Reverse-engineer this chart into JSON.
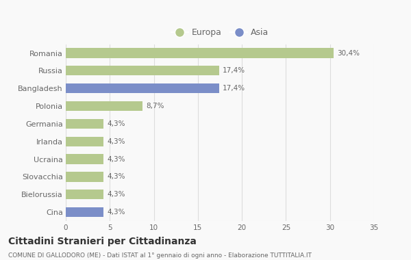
{
  "countries": [
    "Romania",
    "Russia",
    "Bangladesh",
    "Polonia",
    "Germania",
    "Irlanda",
    "Ucraina",
    "Slovacchia",
    "Bielorussia",
    "Cina"
  ],
  "values": [
    30.4,
    17.4,
    17.4,
    8.7,
    4.3,
    4.3,
    4.3,
    4.3,
    4.3,
    4.3
  ],
  "labels": [
    "30,4%",
    "17,4%",
    "17,4%",
    "8,7%",
    "4,3%",
    "4,3%",
    "4,3%",
    "4,3%",
    "4,3%",
    "4,3%"
  ],
  "continents": [
    "Europa",
    "Europa",
    "Asia",
    "Europa",
    "Europa",
    "Europa",
    "Europa",
    "Europa",
    "Europa",
    "Asia"
  ],
  "europa_color": "#b5c98e",
  "asia_color": "#7b8ec8",
  "background_color": "#f9f9f9",
  "grid_color": "#dddddd",
  "text_color": "#666666",
  "title": "Cittadini Stranieri per Cittadinanza",
  "subtitle": "COMUNE DI GALLODORO (ME) - Dati ISTAT al 1° gennaio di ogni anno - Elaborazione TUTTITALIA.IT",
  "xlim": [
    0,
    35
  ],
  "xticks": [
    0,
    5,
    10,
    15,
    20,
    25,
    30,
    35
  ],
  "bar_height": 0.55,
  "label_fontsize": 7.5,
  "ytick_fontsize": 8.0,
  "xtick_fontsize": 7.5,
  "title_fontsize": 10,
  "subtitle_fontsize": 6.5
}
